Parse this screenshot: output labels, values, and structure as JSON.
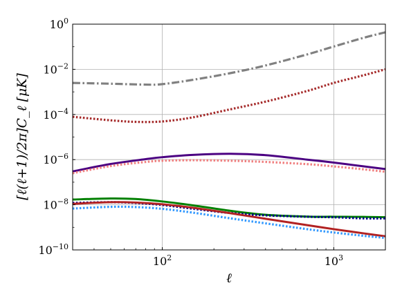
{
  "chart_data": {
    "type": "line",
    "xlabel": "ℓ",
    "ylabel": "[ℓ(ℓ+1)/2π]C_ℓ [μK]",
    "xscale": "log",
    "yscale": "log",
    "xlim": [
      30,
      2000
    ],
    "ylim": [
      1e-10,
      1
    ],
    "grid": true,
    "x_ticks": [
      {
        "value": 100,
        "base": "10",
        "exp": "2"
      },
      {
        "value": 1000,
        "base": "10",
        "exp": "3"
      }
    ],
    "y_ticks": [
      {
        "value": 1,
        "base": "10",
        "exp": "0"
      },
      {
        "value": 0.01,
        "base": "10",
        "exp": "−2"
      },
      {
        "value": 0.0001,
        "base": "10",
        "exp": "−4"
      },
      {
        "value": 1e-06,
        "base": "10",
        "exp": "−6"
      },
      {
        "value": 1e-08,
        "base": "10",
        "exp": "−8"
      },
      {
        "value": 1e-10,
        "base": "10",
        "exp": "−10"
      }
    ],
    "series": [
      {
        "color": "#808080",
        "style": "dashdot",
        "x": [
          30,
          50,
          80,
          100,
          150,
          250,
          400,
          700,
          1000,
          1500,
          2000
        ],
        "y": [
          0.0025,
          0.0023,
          0.0021,
          0.0022,
          0.0034,
          0.0068,
          0.0148,
          0.0457,
          0.1023,
          0.2512,
          0.4365
        ]
      },
      {
        "color": "#a52a2a",
        "style": "dotted",
        "x": [
          30,
          50,
          70,
          100,
          150,
          250,
          400,
          700,
          1000,
          1500,
          2000
        ],
        "y": [
          7.9e-05,
          5.5e-05,
          4.7e-05,
          4.9e-05,
          7.4e-05,
          0.00017,
          0.00037,
          0.0011,
          0.0025,
          0.0055,
          0.01
        ]
      },
      {
        "color": "#4b0082",
        "style": "solid",
        "x": [
          30,
          50,
          80,
          100,
          150,
          250,
          400,
          700,
          1000,
          1500,
          2000
        ],
        "y": [
          3e-07,
          6.4e-07,
          1.05e-06,
          1.28e-06,
          1.62e-06,
          1.82e-06,
          1.58e-06,
          1e-06,
          7.4e-07,
          5e-07,
          3.8e-07
        ]
      },
      {
        "color": "#f08080",
        "style": "dotted",
        "x": [
          30,
          50,
          80,
          100,
          150,
          250,
          400,
          700,
          1000,
          1500,
          2000
        ],
        "y": [
          2.5e-07,
          5.2e-07,
          7.9e-07,
          8.9e-07,
          9.4e-07,
          8.9e-07,
          7.9e-07,
          6.3e-07,
          5e-07,
          3.7e-07,
          2.9e-07
        ]
      },
      {
        "color": "#008000",
        "style": "solid",
        "x": [
          30,
          50,
          70,
          100,
          150,
          250,
          400,
          700,
          1000,
          1500,
          2000
        ],
        "y": [
          1.7e-08,
          1.9e-08,
          1.8e-08,
          1.4e-08,
          9.5e-09,
          5.4e-09,
          3.6e-09,
          3e-09,
          2.95e-09,
          2.9e-09,
          2.8e-09
        ]
      },
      {
        "color": "#00008b",
        "style": "dotted",
        "x": [
          30,
          50,
          70,
          100,
          150,
          250,
          400,
          700,
          1000,
          1500,
          2000
        ],
        "y": [
          1.2e-08,
          1.3e-08,
          1.2e-08,
          9.8e-09,
          6.7e-09,
          4.3e-09,
          3.4e-09,
          2.95e-09,
          2.8e-09,
          2.5e-09,
          2.5e-09
        ]
      },
      {
        "color": "#b22222",
        "style": "solid",
        "x": [
          30,
          50,
          70,
          100,
          150,
          250,
          400,
          700,
          1000,
          1500,
          2000
        ],
        "y": [
          1.1e-08,
          1.3e-08,
          1.25e-08,
          1.05e-08,
          7.4e-09,
          4.2e-09,
          2.4e-09,
          1.25e-09,
          8.3e-10,
          5.4e-10,
          4e-10
        ]
      },
      {
        "color": "#3399ff",
        "style": "dotted",
        "x": [
          30,
          50,
          70,
          100,
          150,
          250,
          400,
          700,
          1000,
          1500,
          2000
        ],
        "y": [
          6.8e-09,
          8.1e-09,
          7.9e-09,
          6.6e-09,
          4.5e-09,
          2.5e-09,
          1.5e-09,
          8.3e-10,
          5.9e-10,
          4.2e-10,
          3.4e-10
        ]
      }
    ]
  }
}
